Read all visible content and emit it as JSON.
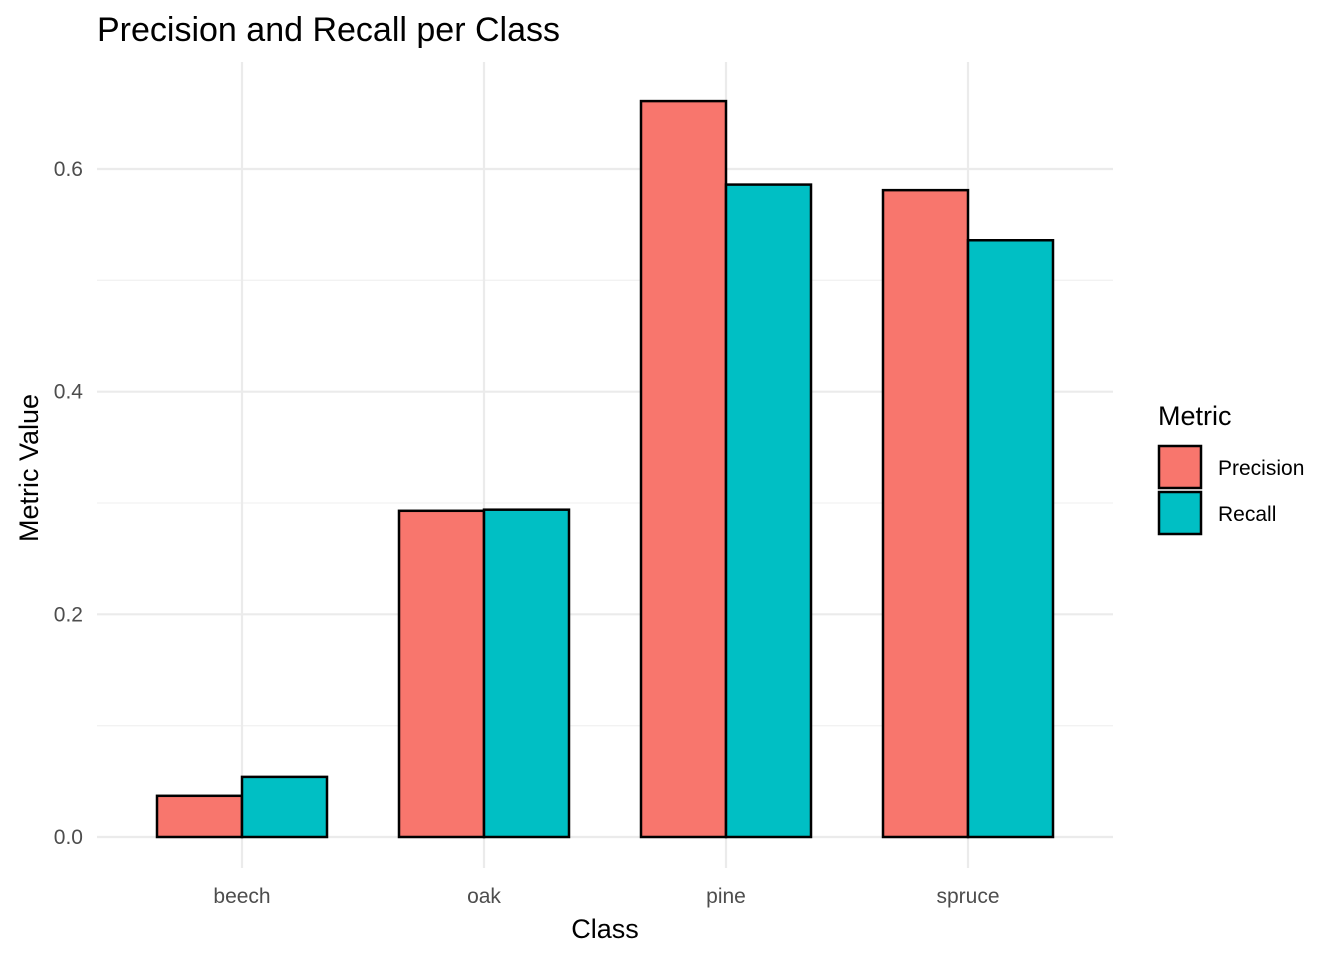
{
  "chart_data": {
    "type": "bar",
    "title": "Precision and Recall per Class",
    "xlabel": "Class",
    "ylabel": "Metric Value",
    "categories": [
      "beech",
      "oak",
      "pine",
      "spruce"
    ],
    "series": [
      {
        "name": "Precision",
        "color": "#F8766D",
        "values": [
          0.037,
          0.293,
          0.661,
          0.581
        ]
      },
      {
        "name": "Recall",
        "color": "#00BFC4",
        "values": [
          0.054,
          0.294,
          0.586,
          0.536
        ]
      }
    ],
    "ylim": [
      0,
      0.7
    ],
    "yticks": [
      "0.0",
      "0.2",
      "0.4",
      "0.6"
    ],
    "grid": true,
    "legend": {
      "title": "Metric",
      "position": "right"
    }
  }
}
